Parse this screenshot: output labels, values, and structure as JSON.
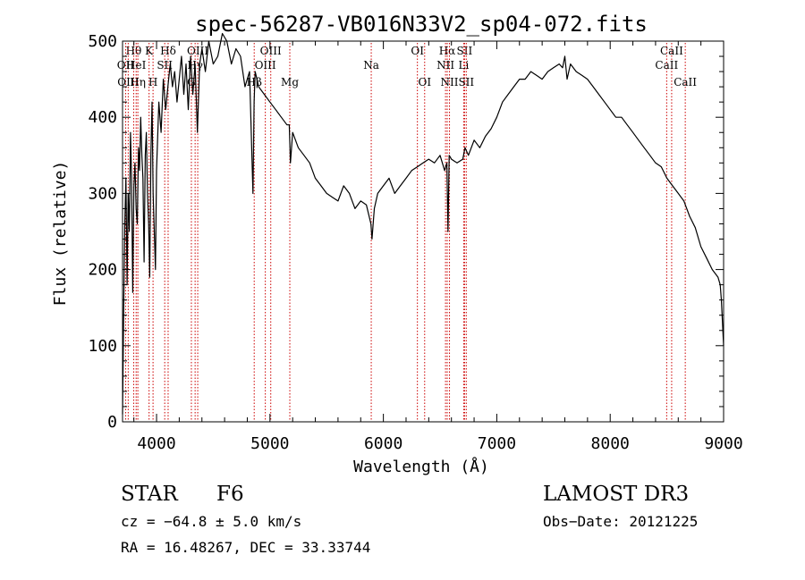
{
  "chart_data": {
    "type": "line",
    "title": "spec-56287-VB016N33V2_sp04-072.fits",
    "xlabel": "Wavelength (Å)",
    "ylabel": "Flux (relative)",
    "xlim": [
      3700,
      9000
    ],
    "ylim": [
      0,
      500
    ],
    "x_ticks": [
      4000,
      5000,
      6000,
      7000,
      8000,
      9000
    ],
    "y_ticks": [
      0,
      100,
      200,
      300,
      400,
      500
    ],
    "grid": false,
    "line_color": "#000000",
    "marker_color": "#cc0000",
    "series": [
      {
        "name": "flux",
        "x": [
          3700,
          3710,
          3720,
          3730,
          3740,
          3750,
          3760,
          3770,
          3780,
          3790,
          3800,
          3810,
          3820,
          3830,
          3840,
          3850,
          3860,
          3870,
          3880,
          3890,
          3900,
          3910,
          3920,
          3930,
          3940,
          3950,
          3960,
          3970,
          3980,
          3990,
          4000,
          4020,
          4040,
          4060,
          4080,
          4100,
          4120,
          4140,
          4160,
          4180,
          4200,
          4220,
          4240,
          4260,
          4280,
          4300,
          4320,
          4340,
          4360,
          4380,
          4400,
          4430,
          4460,
          4500,
          4540,
          4580,
          4620,
          4660,
          4700,
          4740,
          4780,
          4820,
          4850,
          4860,
          4870,
          4900,
          4950,
          5000,
          5050,
          5100,
          5150,
          5170,
          5180,
          5200,
          5250,
          5300,
          5350,
          5400,
          5450,
          5500,
          5550,
          5600,
          5650,
          5700,
          5750,
          5800,
          5850,
          5890,
          5900,
          5920,
          5950,
          6000,
          6050,
          6100,
          6150,
          6200,
          6250,
          6300,
          6350,
          6400,
          6450,
          6500,
          6540,
          6560,
          6570,
          6580,
          6600,
          6650,
          6700,
          6720,
          6750,
          6800,
          6850,
          6900,
          6950,
          7000,
          7050,
          7100,
          7150,
          7200,
          7250,
          7300,
          7350,
          7400,
          7450,
          7500,
          7550,
          7580,
          7600,
          7620,
          7650,
          7700,
          7750,
          7800,
          7850,
          7900,
          7950,
          8000,
          8050,
          8100,
          8150,
          8200,
          8250,
          8300,
          8350,
          8400,
          8450,
          8500,
          8550,
          8600,
          8650,
          8700,
          8750,
          8800,
          8850,
          8900,
          8950,
          8970,
          8980,
          9000
        ],
        "y": [
          10,
          150,
          260,
          320,
          180,
          300,
          250,
          380,
          320,
          170,
          310,
          340,
          280,
          260,
          360,
          330,
          400,
          350,
          320,
          210,
          350,
          380,
          300,
          260,
          190,
          350,
          420,
          300,
          250,
          200,
          330,
          420,
          380,
          450,
          410,
          440,
          470,
          440,
          460,
          420,
          450,
          480,
          430,
          470,
          410,
          480,
          430,
          470,
          380,
          470,
          490,
          460,
          500,
          470,
          480,
          510,
          500,
          470,
          490,
          480,
          440,
          460,
          300,
          420,
          460,
          440,
          430,
          420,
          410,
          400,
          390,
          390,
          340,
          380,
          360,
          350,
          340,
          320,
          310,
          300,
          295,
          290,
          310,
          300,
          280,
          290,
          285,
          260,
          240,
          280,
          300,
          310,
          320,
          300,
          310,
          320,
          330,
          335,
          340,
          345,
          340,
          350,
          330,
          340,
          250,
          350,
          345,
          340,
          345,
          360,
          350,
          370,
          360,
          375,
          385,
          400,
          420,
          430,
          440,
          450,
          450,
          460,
          455,
          450,
          460,
          465,
          470,
          465,
          480,
          450,
          470,
          460,
          455,
          450,
          440,
          430,
          420,
          410,
          400,
          400,
          390,
          380,
          370,
          360,
          350,
          340,
          335,
          320,
          310,
          300,
          290,
          270,
          255,
          230,
          215,
          200,
          190,
          180,
          160,
          100
        ]
      }
    ],
    "line_markers": [
      {
        "label": "Hθ",
        "x": 3798,
        "row": 1
      },
      {
        "label": "OII",
        "x": 3727,
        "row": 2
      },
      {
        "label": "OIII",
        "x": 3750,
        "row": 3
      },
      {
        "label": "Hη",
        "x": 3835,
        "row": 3
      },
      {
        "label": "HeI",
        "x": 3820,
        "row": 2
      },
      {
        "label": "K",
        "x": 3934,
        "row": 1
      },
      {
        "label": "SII",
        "x": 4072,
        "row": 2
      },
      {
        "label": "H",
        "x": 3969,
        "row": 3
      },
      {
        "label": "Hδ",
        "x": 4102,
        "row": 1
      },
      {
        "label": "OIII",
        "x": 4363,
        "row": 1
      },
      {
        "label": "Hγ",
        "x": 4340,
        "row": 2
      },
      {
        "label": "G",
        "x": 4307,
        "row": 3
      },
      {
        "label": "OIII",
        "x": 5007,
        "row": 1
      },
      {
        "label": "OIII",
        "x": 4959,
        "row": 2
      },
      {
        "label": "Hβ",
        "x": 4861,
        "row": 3
      },
      {
        "label": "Mg",
        "x": 5175,
        "row": 3
      },
      {
        "label": "Na",
        "x": 5893,
        "row": 2
      },
      {
        "label": "OI",
        "x": 6300,
        "row": 1
      },
      {
        "label": "OI",
        "x": 6364,
        "row": 3
      },
      {
        "label": "Hα",
        "x": 6563,
        "row": 1
      },
      {
        "label": "NII",
        "x": 6548,
        "row": 2
      },
      {
        "label": "NII",
        "x": 6583,
        "row": 3
      },
      {
        "label": "SII",
        "x": 6716,
        "row": 1
      },
      {
        "label": "Li",
        "x": 6708,
        "row": 2
      },
      {
        "label": "SII",
        "x": 6731,
        "row": 3
      },
      {
        "label": "CaII",
        "x": 8542,
        "row": 1
      },
      {
        "label": "CaII",
        "x": 8498,
        "row": 2
      },
      {
        "label": "CaII",
        "x": 8662,
        "row": 3
      }
    ]
  },
  "info": {
    "object_class": "STAR",
    "subclass": "F6",
    "survey": "LAMOST DR3",
    "cz": "cz = −64.8 ± 5.0 km/s",
    "obs_date": "Obs−Date: 20121225",
    "coords": "RA =  16.48267, DEC =  33.33744"
  }
}
